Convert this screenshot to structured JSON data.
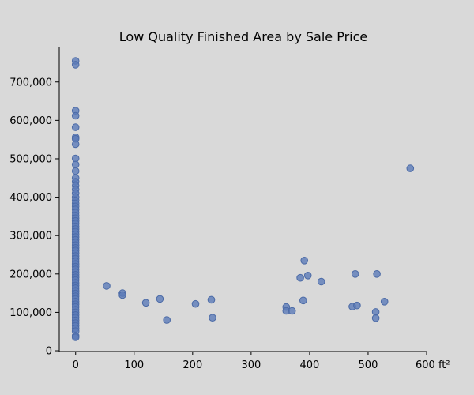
{
  "chart_data": {
    "type": "scatter",
    "title": "Low Quality Finished Area by Sale Price",
    "xlabel": "",
    "ylabel": "",
    "xlim": [
      -28,
      600
    ],
    "ylim": [
      -2000,
      790000
    ],
    "x_ticks": [
      0,
      100,
      200,
      300,
      400,
      500,
      600
    ],
    "x_tick_labels": [
      "0",
      "100",
      "200",
      "300",
      "400",
      "500",
      "600 ft²"
    ],
    "y_ticks": [
      0,
      100000,
      200000,
      300000,
      400000,
      500000,
      600000,
      700000
    ],
    "y_tick_labels": [
      "0",
      "100,000",
      "200,000",
      "300,000",
      "400,000",
      "500,000",
      "600,000",
      "700,000"
    ],
    "grid": false,
    "legend": "none",
    "marker_color": "#5b7bb8",
    "background_color": "#d9d9d9",
    "series": [
      {
        "points": [
          [
            0,
            755000
          ],
          [
            0,
            745000
          ],
          [
            0,
            625000
          ],
          [
            0,
            612000
          ],
          [
            0,
            582000
          ],
          [
            0,
            556000
          ],
          [
            0,
            552000
          ],
          [
            0,
            538000
          ],
          [
            0,
            501000
          ],
          [
            0,
            485000
          ],
          [
            0,
            468000
          ],
          [
            0,
            450000
          ],
          [
            0,
            440000
          ],
          [
            0,
            430000
          ],
          [
            0,
            420000
          ],
          [
            0,
            410000
          ],
          [
            0,
            400000
          ],
          [
            0,
            392000
          ],
          [
            0,
            384000
          ],
          [
            0,
            376000
          ],
          [
            0,
            368000
          ],
          [
            0,
            360000
          ],
          [
            0,
            352000
          ],
          [
            0,
            345000
          ],
          [
            0,
            338000
          ],
          [
            0,
            331000
          ],
          [
            0,
            324000
          ],
          [
            0,
            317000
          ],
          [
            0,
            310000
          ],
          [
            0,
            303000
          ],
          [
            0,
            296000
          ],
          [
            0,
            289000
          ],
          [
            0,
            282000
          ],
          [
            0,
            275000
          ],
          [
            0,
            268000
          ],
          [
            0,
            261000
          ],
          [
            0,
            254000
          ],
          [
            0,
            247000
          ],
          [
            0,
            240000
          ],
          [
            0,
            233000
          ],
          [
            0,
            226000
          ],
          [
            0,
            219000
          ],
          [
            0,
            212000
          ],
          [
            0,
            205000
          ],
          [
            0,
            198000
          ],
          [
            0,
            191000
          ],
          [
            0,
            184000
          ],
          [
            0,
            177000
          ],
          [
            0,
            170000
          ],
          [
            0,
            163000
          ],
          [
            0,
            156000
          ],
          [
            0,
            149000
          ],
          [
            0,
            142000
          ],
          [
            0,
            135000
          ],
          [
            0,
            128000
          ],
          [
            0,
            121000
          ],
          [
            0,
            114000
          ],
          [
            0,
            107000
          ],
          [
            0,
            100000
          ],
          [
            0,
            93000
          ],
          [
            0,
            86000
          ],
          [
            0,
            79000
          ],
          [
            0,
            72000
          ],
          [
            0,
            65000
          ],
          [
            0,
            58000
          ],
          [
            0,
            51000
          ],
          [
            0,
            39000
          ],
          [
            0,
            35000
          ],
          [
            53,
            169000
          ],
          [
            80,
            150000
          ],
          [
            80,
            145000
          ],
          [
            120,
            125000
          ],
          [
            144,
            135000
          ],
          [
            156,
            80000
          ],
          [
            205,
            122000
          ],
          [
            232,
            133000
          ],
          [
            234,
            86000
          ],
          [
            360,
            114000
          ],
          [
            360,
            104000
          ],
          [
            370,
            104000
          ],
          [
            384,
            190000
          ],
          [
            389,
            131000
          ],
          [
            391,
            235000
          ],
          [
            397,
            196000
          ],
          [
            420,
            180000
          ],
          [
            473,
            115000
          ],
          [
            478,
            200000
          ],
          [
            481,
            118000
          ],
          [
            513,
            101000
          ],
          [
            513,
            85000
          ],
          [
            515,
            200000
          ],
          [
            528,
            128000
          ],
          [
            572,
            475000
          ]
        ]
      }
    ]
  }
}
